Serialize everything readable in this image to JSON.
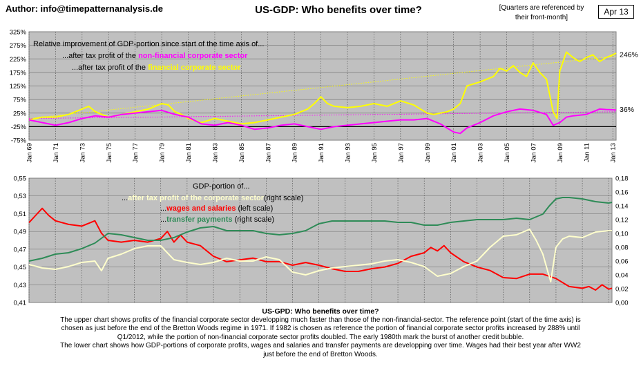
{
  "header": {
    "author": "Author: info@timepatternanalysis.de",
    "title": "US-GDP: Who benefits over time?",
    "quarter_note_line1": "[Quarters are referenced by",
    "quarter_note_line2": "their front-month]",
    "date": "Apr 13"
  },
  "colors": {
    "plot_bg": "#c0c0c0",
    "nonfinancial": "#ff00ff",
    "financial": "#ffff00",
    "wages": "#ff0000",
    "transfer": "#2e8b57",
    "corp_profit": "#ffffcc"
  },
  "chart_data": [
    {
      "type": "line",
      "ylim": [
        -75,
        325
      ],
      "yticks": [
        "325%",
        "275%",
        "225%",
        "175%",
        "125%",
        "75%",
        "25%",
        "-25%",
        "-75%"
      ],
      "xticks": [
        "Jan 69",
        "Jan 71",
        "Jan 73",
        "Jan 75",
        "Jan 77",
        "Jan 79",
        "Jan 81",
        "Jan 83",
        "Jan 85",
        "Jan 87",
        "Jan 89",
        "Jan 91",
        "Jan 93",
        "Jan 95",
        "Jan 97",
        "Jan 99",
        "Jan 01",
        "Jan 03",
        "Jan 05",
        "Jan 07",
        "Jan 09",
        "Jan 11",
        "Jan 13"
      ],
      "legend": {
        "line1": "Relative improvement of GDP-portion since start of the time axis of...",
        "line2_prefix": "...after tax profit of the ",
        "line2_colored": "non-financial corporate sector",
        "line3_prefix": "...after tax profit of the ",
        "line3_colored": "financial corporate sector"
      },
      "end_labels": {
        "financial": "246%",
        "nonfinancial": "36%"
      },
      "series": [
        {
          "key": "financial",
          "x": [
            1969,
            1970,
            1971,
            1972,
            1973,
            1973.5,
            1974,
            1974.5,
            1975,
            1976,
            1977,
            1978,
            1979,
            1979.5,
            1980,
            1980.5,
            1981,
            1982,
            1983,
            1984,
            1985,
            1986,
            1987,
            1988,
            1989,
            1990,
            1990.5,
            1991,
            1991.5,
            1992,
            1993,
            1994,
            1995,
            1996,
            1997,
            1998,
            1999,
            1999.5,
            2000,
            2000.5,
            2001,
            2001.5,
            2002,
            2003,
            2004,
            2004.5,
            2005,
            2005.5,
            2006,
            2006.5,
            2007,
            2007.5,
            2008,
            2008.5,
            2008.8,
            2009,
            2009.5,
            2010,
            2010.5,
            2011,
            2011.5,
            2012,
            2012.5,
            2013,
            2013.25
          ],
          "y": [
            0,
            10,
            10,
            20,
            40,
            50,
            30,
            20,
            10,
            20,
            30,
            40,
            60,
            55,
            30,
            20,
            5,
            -10,
            5,
            -5,
            -15,
            -10,
            0,
            10,
            20,
            40,
            60,
            85,
            60,
            50,
            45,
            50,
            60,
            50,
            70,
            55,
            25,
            20,
            25,
            30,
            40,
            60,
            125,
            140,
            160,
            190,
            180,
            200,
            175,
            160,
            210,
            175,
            150,
            30,
            5,
            180,
            250,
            230,
            215,
            230,
            240,
            215,
            230,
            240,
            246
          ]
        },
        {
          "key": "nonfinancial",
          "x": [
            1969,
            1970,
            1971,
            1972,
            1973,
            1974,
            1975,
            1976,
            1977,
            1978,
            1979,
            1980,
            1981,
            1982,
            1983,
            1984,
            1985,
            1986,
            1987,
            1988,
            1989,
            1990,
            1991,
            1992,
            1993,
            1994,
            1995,
            1996,
            1997,
            1998,
            1999,
            2000,
            2001,
            2001.5,
            2002,
            2003,
            2004,
            2005,
            2006,
            2007,
            2008,
            2008.5,
            2009,
            2009.5,
            2010,
            2011,
            2012,
            2012.5,
            2013,
            2013.25
          ],
          "y": [
            0,
            -10,
            -20,
            -10,
            5,
            15,
            10,
            20,
            25,
            30,
            35,
            20,
            10,
            -15,
            -20,
            -10,
            -20,
            -35,
            -30,
            -20,
            -15,
            -25,
            -35,
            -25,
            -20,
            -15,
            -10,
            -5,
            0,
            0,
            5,
            -15,
            -45,
            -50,
            -30,
            -10,
            15,
            30,
            40,
            35,
            20,
            -20,
            -10,
            10,
            15,
            20,
            40,
            38,
            37,
            36
          ]
        }
      ],
      "trends": [
        {
          "key": "financial",
          "x": [
            1969,
            2013.25
          ],
          "y": [
            5,
            235
          ]
        },
        {
          "key": "nonfinancial",
          "x": [
            1969,
            2013.25
          ],
          "y": [
            5,
            30
          ]
        }
      ],
      "baseline": -25
    },
    {
      "type": "line",
      "ylim_left": [
        0.41,
        0.55
      ],
      "ylim_right": [
        0.0,
        0.18
      ],
      "yticks_left": [
        "0,55",
        "0,53",
        "0,51",
        "0,49",
        "0,47",
        "0,45",
        "0,43",
        "0,41"
      ],
      "yticks_right": [
        "0,18",
        "0,16",
        "0,14",
        "0,12",
        "0,10",
        "0,08",
        "0,06",
        "0,04",
        "0,02",
        "0,00"
      ],
      "legend": {
        "title": "GDP-portion of...",
        "line1_prefix": "...",
        "line1_colored": "after tax profit of the corporate sector",
        "line1_suffix": "(right scale)",
        "line2_prefix": "...",
        "line2_colored": "wages and salaries",
        "line2_suffix": " (left scale)",
        "line3_prefix": "...",
        "line3_colored": "transfer payments",
        "line3_suffix": " (right scale)"
      },
      "series": [
        {
          "key": "wages",
          "axis": "left",
          "x": [
            1969,
            1969.5,
            1970,
            1970.5,
            1971,
            1972,
            1973,
            1974,
            1974.5,
            1975,
            1976,
            1977,
            1978,
            1979,
            1979.5,
            1980,
            1980.5,
            1981,
            1982,
            1983,
            1984,
            1985,
            1986,
            1987,
            1988,
            1989,
            1990,
            1991,
            1992,
            1993,
            1994,
            1995,
            1996,
            1997,
            1998,
            1999,
            1999.5,
            2000,
            2000.5,
            2001,
            2002,
            2003,
            2004,
            2005,
            2006,
            2007,
            2008,
            2009,
            2010,
            2011,
            2011.5,
            2012,
            2012.5,
            2013,
            2013.25
          ],
          "y": [
            0.5,
            0.508,
            0.516,
            0.508,
            0.502,
            0.498,
            0.496,
            0.502,
            0.488,
            0.48,
            0.478,
            0.48,
            0.478,
            0.482,
            0.49,
            0.478,
            0.486,
            0.478,
            0.474,
            0.462,
            0.456,
            0.458,
            0.46,
            0.456,
            0.456,
            0.452,
            0.455,
            0.452,
            0.448,
            0.445,
            0.445,
            0.448,
            0.45,
            0.454,
            0.462,
            0.466,
            0.472,
            0.468,
            0.474,
            0.466,
            0.456,
            0.45,
            0.446,
            0.438,
            0.437,
            0.442,
            0.442,
            0.437,
            0.428,
            0.426,
            0.428,
            0.424,
            0.43,
            0.425,
            0.426
          ]
        },
        {
          "key": "transfer",
          "axis": "right",
          "x": [
            1969,
            1970,
            1971,
            1972,
            1973,
            1974,
            1975,
            1976,
            1977,
            1978,
            1979,
            1980,
            1981,
            1982,
            1983,
            1984,
            1985,
            1986,
            1987,
            1988,
            1989,
            1990,
            1991,
            1992,
            1993,
            1994,
            1995,
            1996,
            1997,
            1998,
            1999,
            2000,
            2001,
            2002,
            2003,
            2004,
            2005,
            2006,
            2007,
            2007.5,
            2008,
            2008.5,
            2009,
            2009.5,
            2010,
            2011,
            2012,
            2013,
            2013.25
          ],
          "y": [
            0.06,
            0.064,
            0.07,
            0.072,
            0.078,
            0.086,
            0.1,
            0.098,
            0.094,
            0.09,
            0.09,
            0.094,
            0.102,
            0.108,
            0.11,
            0.104,
            0.104,
            0.104,
            0.1,
            0.098,
            0.1,
            0.104,
            0.114,
            0.118,
            0.118,
            0.118,
            0.118,
            0.118,
            0.116,
            0.116,
            0.112,
            0.112,
            0.116,
            0.118,
            0.12,
            0.12,
            0.12,
            0.122,
            0.12,
            0.124,
            0.128,
            0.14,
            0.15,
            0.152,
            0.152,
            0.15,
            0.146,
            0.144,
            0.145
          ]
        },
        {
          "key": "corp_profit",
          "axis": "right",
          "x": [
            1969,
            1970,
            1971,
            1972,
            1973,
            1974,
            1974.5,
            1975,
            1976,
            1977,
            1978,
            1979,
            1980,
            1981,
            1982,
            1983,
            1984,
            1985,
            1986,
            1987,
            1988,
            1989,
            1990,
            1991,
            1992,
            1993,
            1994,
            1995,
            1996,
            1997,
            1998,
            1999,
            2000,
            2001,
            2002,
            2003,
            2004,
            2005,
            2006,
            2007,
            2007.5,
            2008,
            2008.3,
            2008.6,
            2009,
            2009.5,
            2010,
            2011,
            2012,
            2013,
            2013.25
          ],
          "y": [
            0.055,
            0.05,
            0.048,
            0.052,
            0.058,
            0.06,
            0.046,
            0.064,
            0.07,
            0.078,
            0.082,
            0.082,
            0.062,
            0.058,
            0.055,
            0.058,
            0.064,
            0.06,
            0.06,
            0.066,
            0.062,
            0.044,
            0.04,
            0.046,
            0.05,
            0.052,
            0.054,
            0.056,
            0.06,
            0.062,
            0.058,
            0.052,
            0.038,
            0.042,
            0.052,
            0.06,
            0.08,
            0.096,
            0.098,
            0.106,
            0.09,
            0.07,
            0.05,
            0.03,
            0.08,
            0.092,
            0.096,
            0.094,
            0.102,
            0.104,
            0.104
          ]
        }
      ]
    }
  ],
  "description": {
    "title": "US-GPD: Who benefits over time?",
    "lines": [
      "The upper chart shows profits of the financial corporate sector developping much faster than those of the non-financial-sector. The reference point (start of the time axis) is",
      "chosen as just before the end of the Bretton Woods regime in 1971. If 1982 is chosen as reference the portion of financial corporate sector profits increased by 288% until",
      "Q1/2012, while the portion of non-financial corporate sector profits doubled. The early 1980th mark the burst of another credit bubble.",
      "The lower chart shows how GDP-portions of corporate profits, wages and salaries and transfer payments are developping over time. Wages had their best year after WW2",
      "just before the end of Bretton Woods."
    ]
  }
}
